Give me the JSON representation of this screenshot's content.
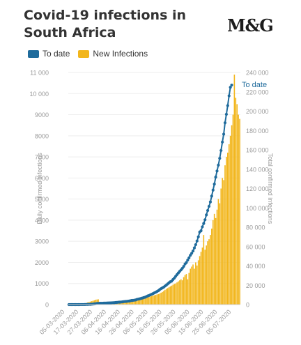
{
  "title": "Covid-19 infections in South Africa",
  "logo": "M&G",
  "colors": {
    "to_date": "#1f6b9c",
    "new_infections": "#f2b61c",
    "axis_text": "#999999"
  },
  "chart_data": {
    "type": "bar",
    "title": "Covid-19 infections in South Africa",
    "legend": {
      "position": "top-left",
      "entries": [
        "To date",
        "New Infections"
      ]
    },
    "ylabel_left": "Daily confirmed infections",
    "ylabel_right": "Total confirmed infections",
    "ylim_left": [
      0,
      11000
    ],
    "ylim_right": [
      0,
      240000
    ],
    "y_ticks_left": [
      "0",
      "1000",
      "2000",
      "3000",
      "4000",
      "5000",
      "6000",
      "7000",
      "8000",
      "9000",
      "10 000",
      "11 000"
    ],
    "y_ticks_right": [
      "0",
      "20 000",
      "40 000",
      "60 000",
      "80 000",
      "100 000",
      "120 000",
      "140 000",
      "160 000",
      "180 000",
      "200 000",
      "220 000",
      "240 000"
    ],
    "x_ticks": [
      "05-03-2020",
      "17-03-2020",
      "27-03-2020",
      "06-04-2020",
      "16-04-2020",
      "26-04-2020",
      "06-05-2020",
      "16-05-2020",
      "26-05-2020",
      "05-06-2020",
      "15-06-2020",
      "25-06-2020",
      "05-07-2020"
    ],
    "line_label": "To date",
    "series": [
      {
        "name": "New Infections",
        "type": "bar",
        "values": [
          0,
          0,
          0,
          0,
          0,
          5,
          10,
          14,
          20,
          25,
          30,
          45,
          60,
          80,
          100,
          120,
          140,
          160,
          180,
          200,
          230,
          240,
          250,
          70,
          50,
          70,
          80,
          90,
          90,
          80,
          70,
          60,
          50,
          40,
          60,
          70,
          70,
          80,
          90,
          100,
          120,
          110,
          130,
          140,
          150,
          160,
          170,
          180,
          190,
          200,
          210,
          230,
          240,
          250,
          270,
          280,
          300,
          320,
          330,
          350,
          360,
          380,
          400,
          420,
          440,
          460,
          480,
          500,
          520,
          560,
          600,
          640,
          700,
          740,
          780,
          820,
          860,
          900,
          940,
          980,
          1000,
          1050,
          1100,
          1150,
          1200,
          1150,
          1300,
          1400,
          1450,
          1200,
          1500,
          1700,
          1800,
          1900,
          1700,
          2000,
          1850,
          2100,
          2300,
          2500,
          2700,
          3300,
          2600,
          2800,
          3000,
          3100,
          3300,
          3600,
          4000,
          4300,
          4100,
          4500,
          5000,
          4800,
          5500,
          6000,
          5900,
          6600,
          7000,
          7200,
          7600,
          8000,
          8500,
          9000,
          10900,
          9800,
          9500,
          9000,
          8800
        ]
      },
      {
        "name": "To date",
        "type": "line",
        "values": [
          1,
          1,
          1,
          2,
          3,
          7,
          13,
          17,
          24,
          38,
          51,
          62,
          116,
          150,
          202,
          240,
          274,
          402,
          554,
          709,
          927,
          1170,
          1280,
          1326,
          1353,
          1380,
          1462,
          1505,
          1585,
          1655,
          1686,
          1749,
          1845,
          1934,
          2003,
          2173,
          2272,
          2415,
          2506,
          2605,
          2783,
          3034,
          3158,
          3300,
          3465,
          3635,
          3953,
          4220,
          4361,
          4546,
          4793,
          5350,
          5647,
          5951,
          6336,
          6783,
          7220,
          7572,
          8232,
          8895,
          9420,
          10015,
          10652,
          11350,
          12074,
          12739,
          13524,
          14355,
          15515,
          16433,
          17200,
          18003,
          19137,
          20125,
          21343,
          22583,
          23615,
          24264,
          25937,
          27403,
          29240,
          30967,
          32683,
          34357,
          35812,
          37525,
          39473,
          41936,
          43434,
          45973,
          48285,
          50879,
          53017,
          55421,
          58568,
          61927,
          65736,
          70038,
          75008,
          76334,
          80412,
          83890,
          87715,
          92681,
          97302,
          101590,
          106108,
          112165,
          118375,
          124590,
          131800,
          138134,
          144264,
          151209,
          159333,
          168061,
          176242,
          187977,
          196750,
          205721,
          215855,
          224665,
          227000
        ]
      }
    ]
  }
}
